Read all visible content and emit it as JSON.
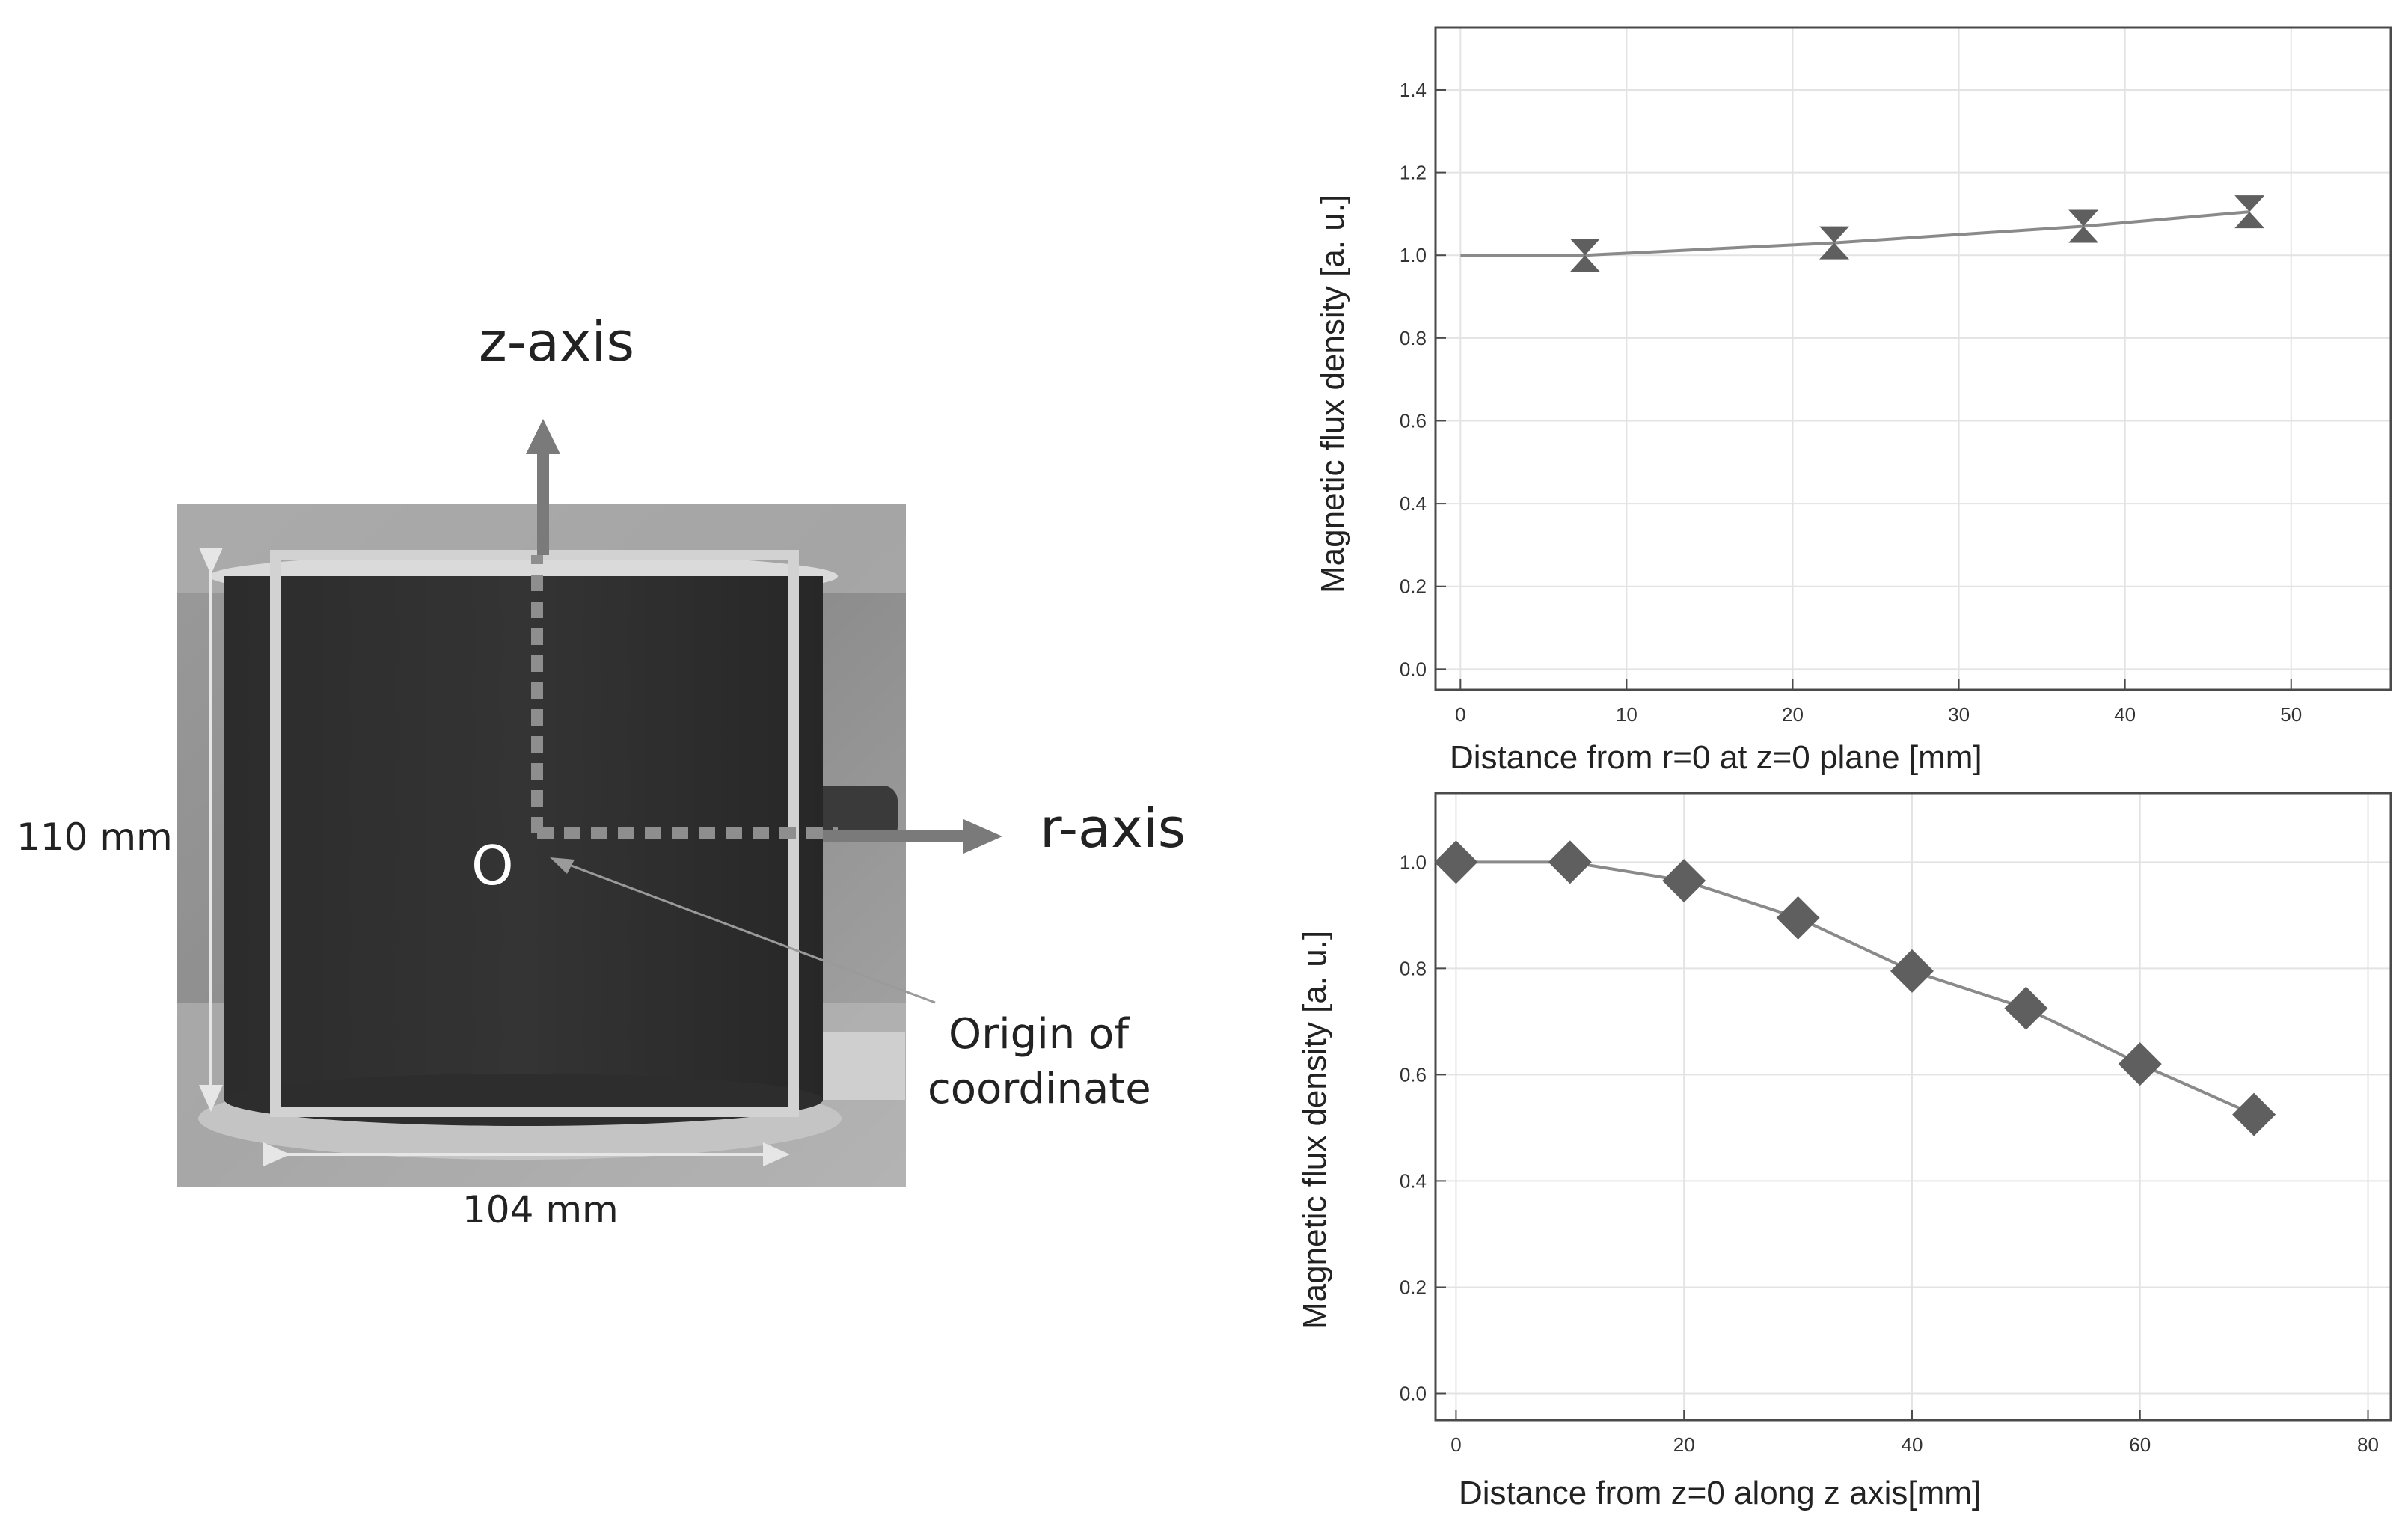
{
  "diagram": {
    "z_axis_label": "z-axis",
    "r_axis_label": "r-axis",
    "origin_letter": "O",
    "origin_caption_line1": "Origin of",
    "origin_caption_line2": "coordinate",
    "height_dim": "110 mm",
    "width_dim": "104 mm"
  },
  "chart_data": [
    {
      "type": "line",
      "title": "",
      "xlabel": "Distance from r=0 at z=0 plane [mm]",
      "ylabel": "Magnetic flux density [a. u.]",
      "xlim": [
        -1.5,
        56
      ],
      "ylim": [
        -0.05,
        1.55
      ],
      "xticks": [
        0,
        10,
        20,
        30,
        40,
        50
      ],
      "yticks": [
        0.0,
        0.2,
        0.4,
        0.6,
        0.8,
        1.0,
        1.2,
        1.4
      ],
      "xtick_labels": [
        "0",
        "10",
        "20",
        "30",
        "40",
        "50"
      ],
      "ytick_labels": [
        "0.0",
        "0.2",
        "0.4",
        "0.6",
        "0.8",
        "1.0",
        "1.2",
        "1.4"
      ],
      "grid": true,
      "marker": "bowtie",
      "line_start": [
        0,
        1.0
      ],
      "x": [
        7.5,
        22.5,
        37.5,
        47.5
      ],
      "y": [
        1.0,
        1.03,
        1.07,
        1.105
      ]
    },
    {
      "type": "line",
      "title": "",
      "xlabel": "Distance from z=0 along z axis[mm]",
      "ylabel": "Magnetic flux density [a. u.]",
      "xlim": [
        -1.8,
        82
      ],
      "ylim": [
        -0.05,
        1.13
      ],
      "xticks": [
        0,
        20,
        40,
        60,
        80
      ],
      "yticks": [
        0.0,
        0.2,
        0.4,
        0.6,
        0.8,
        1.0
      ],
      "xtick_labels": [
        "0",
        "20",
        "40",
        "60",
        "80"
      ],
      "ytick_labels": [
        "0.0",
        "0.2",
        "0.4",
        "0.6",
        "0.8",
        "1.0"
      ],
      "grid": true,
      "marker": "diamond",
      "x": [
        0,
        10,
        20,
        30,
        40,
        50,
        60,
        70
      ],
      "y": [
        1.0,
        1.0,
        0.965,
        0.895,
        0.795,
        0.725,
        0.62,
        0.525
      ]
    }
  ],
  "colors": {
    "arrow": "#7a7a7a",
    "frame": "#d2d2d2",
    "series_line": "#8a8a8a",
    "marker": "#5f5f5f",
    "grid": "#e3e3e3",
    "axes": "#4a4a4a"
  }
}
